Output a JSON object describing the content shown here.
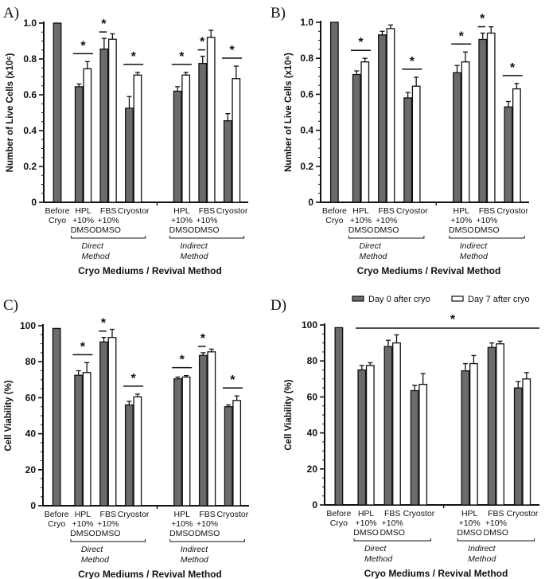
{
  "colors": {
    "day0": "#6b6b6b",
    "day7": "#ffffff",
    "stroke": "#111111"
  },
  "legend": {
    "day0": "Day 0 after cryo",
    "day7": "Day 7 after cryo"
  },
  "chart_data": [
    {
      "panel": "A)",
      "type": "bar",
      "ylabel": "Number of Live Cells (x10⁶)",
      "xlabel": "Cryo Mediums / Revival Method",
      "ylim": [
        0,
        1.0
      ],
      "yticks": [
        "0",
        "0.2",
        "0.4",
        "0.6",
        "0.8",
        "1.0"
      ],
      "categories": [
        "Before Cryo",
        "HPL +10% DMSO",
        "FBS +10% DMSO",
        "Cryostor",
        "HPL +10% DMSO",
        "FBS +10% DMSO",
        "Cryostor"
      ],
      "groups": [
        {
          "label": "Direct Method",
          "members": [
            1,
            2,
            3
          ]
        },
        {
          "label": "Indirect Method",
          "members": [
            4,
            5,
            6
          ]
        }
      ],
      "series": [
        {
          "name": "Day 0 after cryo",
          "values": [
            1.0,
            0.645,
            0.855,
            0.525,
            0.62,
            0.775,
            0.455
          ],
          "errors": [
            0,
            0.015,
            0.06,
            0.065,
            0.025,
            0.04,
            0.04
          ]
        },
        {
          "name": "Day 7 after cryo",
          "values": [
            null,
            0.745,
            0.91,
            0.71,
            0.71,
            0.92,
            0.69
          ],
          "errors": [
            null,
            0.04,
            0.03,
            0.015,
            0.015,
            0.04,
            0.07
          ]
        }
      ],
      "significance": [
        1,
        2,
        3,
        4,
        5,
        6
      ]
    },
    {
      "panel": "B)",
      "type": "bar",
      "ylabel": "Number of Live Cells (x10⁶)",
      "xlabel": "Cryo Mediums / Revival Method",
      "ylim": [
        0,
        1.0
      ],
      "yticks": [
        "0",
        "0.2",
        "0.4",
        "0.6",
        "0.8",
        "1.0"
      ],
      "categories": [
        "Before Cryo",
        "HPL +10% DMSO",
        "FBS +10% DMSO",
        "Cryostor",
        "HPL +10% DMSO",
        "FBS +10% DMSO",
        "Cryostor"
      ],
      "groups": [
        {
          "label": "Direct Method",
          "members": [
            1,
            2,
            3
          ]
        },
        {
          "label": "Indirect Method",
          "members": [
            4,
            5,
            6
          ]
        }
      ],
      "series": [
        {
          "name": "Day 0 after cryo",
          "values": [
            1.0,
            0.71,
            0.93,
            0.58,
            0.72,
            0.905,
            0.53
          ],
          "errors": [
            0,
            0.02,
            0.02,
            0.03,
            0.04,
            0.035,
            0.03
          ]
        },
        {
          "name": "Day 7 after cryo",
          "values": [
            null,
            0.78,
            0.965,
            0.645,
            0.78,
            0.94,
            0.63
          ],
          "errors": [
            null,
            0.02,
            0.02,
            0.05,
            0.055,
            0.035,
            0.03
          ]
        }
      ],
      "significance": [
        1,
        3,
        4,
        5,
        6
      ]
    },
    {
      "panel": "C)",
      "type": "bar",
      "ylabel": "Cell Viability (%)",
      "xlabel": "Cryo Mediums / Revival Method",
      "ylim": [
        0,
        100
      ],
      "yticks": [
        "0",
        "20",
        "40",
        "60",
        "80",
        "100"
      ],
      "categories": [
        "Before Cryo",
        "HPL +10% DMSO",
        "FBS +10% DMSO",
        "Cryostor",
        "HPL +10% DMSO",
        "FBS +10% DMSO",
        "Cryostor"
      ],
      "groups": [
        {
          "label": "Direct Method",
          "members": [
            1,
            2,
            3
          ]
        },
        {
          "label": "Indirect Method",
          "members": [
            4,
            5,
            6
          ]
        }
      ],
      "series": [
        {
          "name": "Day 0 after cryo",
          "values": [
            98.5,
            72.5,
            91,
            56,
            70.5,
            83.5,
            55
          ],
          "errors": [
            0,
            2.5,
            2.5,
            2,
            1,
            1.5,
            1
          ]
        },
        {
          "name": "Day 7 after cryo",
          "values": [
            null,
            74,
            93.5,
            60.5,
            71.5,
            85.5,
            58.5
          ],
          "errors": [
            null,
            5.5,
            4.5,
            1.5,
            0.8,
            1.5,
            2.5
          ]
        }
      ],
      "significance": [
        1,
        2,
        3,
        4,
        5,
        6
      ]
    },
    {
      "panel": "D)",
      "type": "bar",
      "ylabel": "Cell Viability (%)",
      "xlabel": "Cryo Mediums / Revival Method",
      "ylim": [
        0,
        100
      ],
      "yticks": [
        "0",
        "20",
        "40",
        "60",
        "80",
        "100"
      ],
      "categories": [
        "Before Cryo",
        "HPL +10% DMSO",
        "FBS +10% DMSO",
        "Cryostor",
        "HPL +10% DMSO",
        "FBS +10% DMSO",
        "Cryostor"
      ],
      "groups": [
        {
          "label": "Direct Method",
          "members": [
            1,
            2,
            3
          ]
        },
        {
          "label": "Indirect Method",
          "members": [
            4,
            5,
            6
          ]
        }
      ],
      "series": [
        {
          "name": "Day 0 after cryo",
          "values": [
            98.5,
            75,
            88,
            63.5,
            74.5,
            87.5,
            65
          ],
          "errors": [
            0,
            2.5,
            3.5,
            3,
            4,
            2.5,
            3.5
          ]
        },
        {
          "name": "Day 7 after cryo",
          "values": [
            null,
            77.5,
            90,
            67,
            78.5,
            89.5,
            70
          ],
          "errors": [
            null,
            1.5,
            4.5,
            6,
            4.5,
            1.5,
            3.5
          ]
        }
      ],
      "significance_overall": true,
      "legend_position": "top"
    }
  ],
  "significance_marker": "*"
}
